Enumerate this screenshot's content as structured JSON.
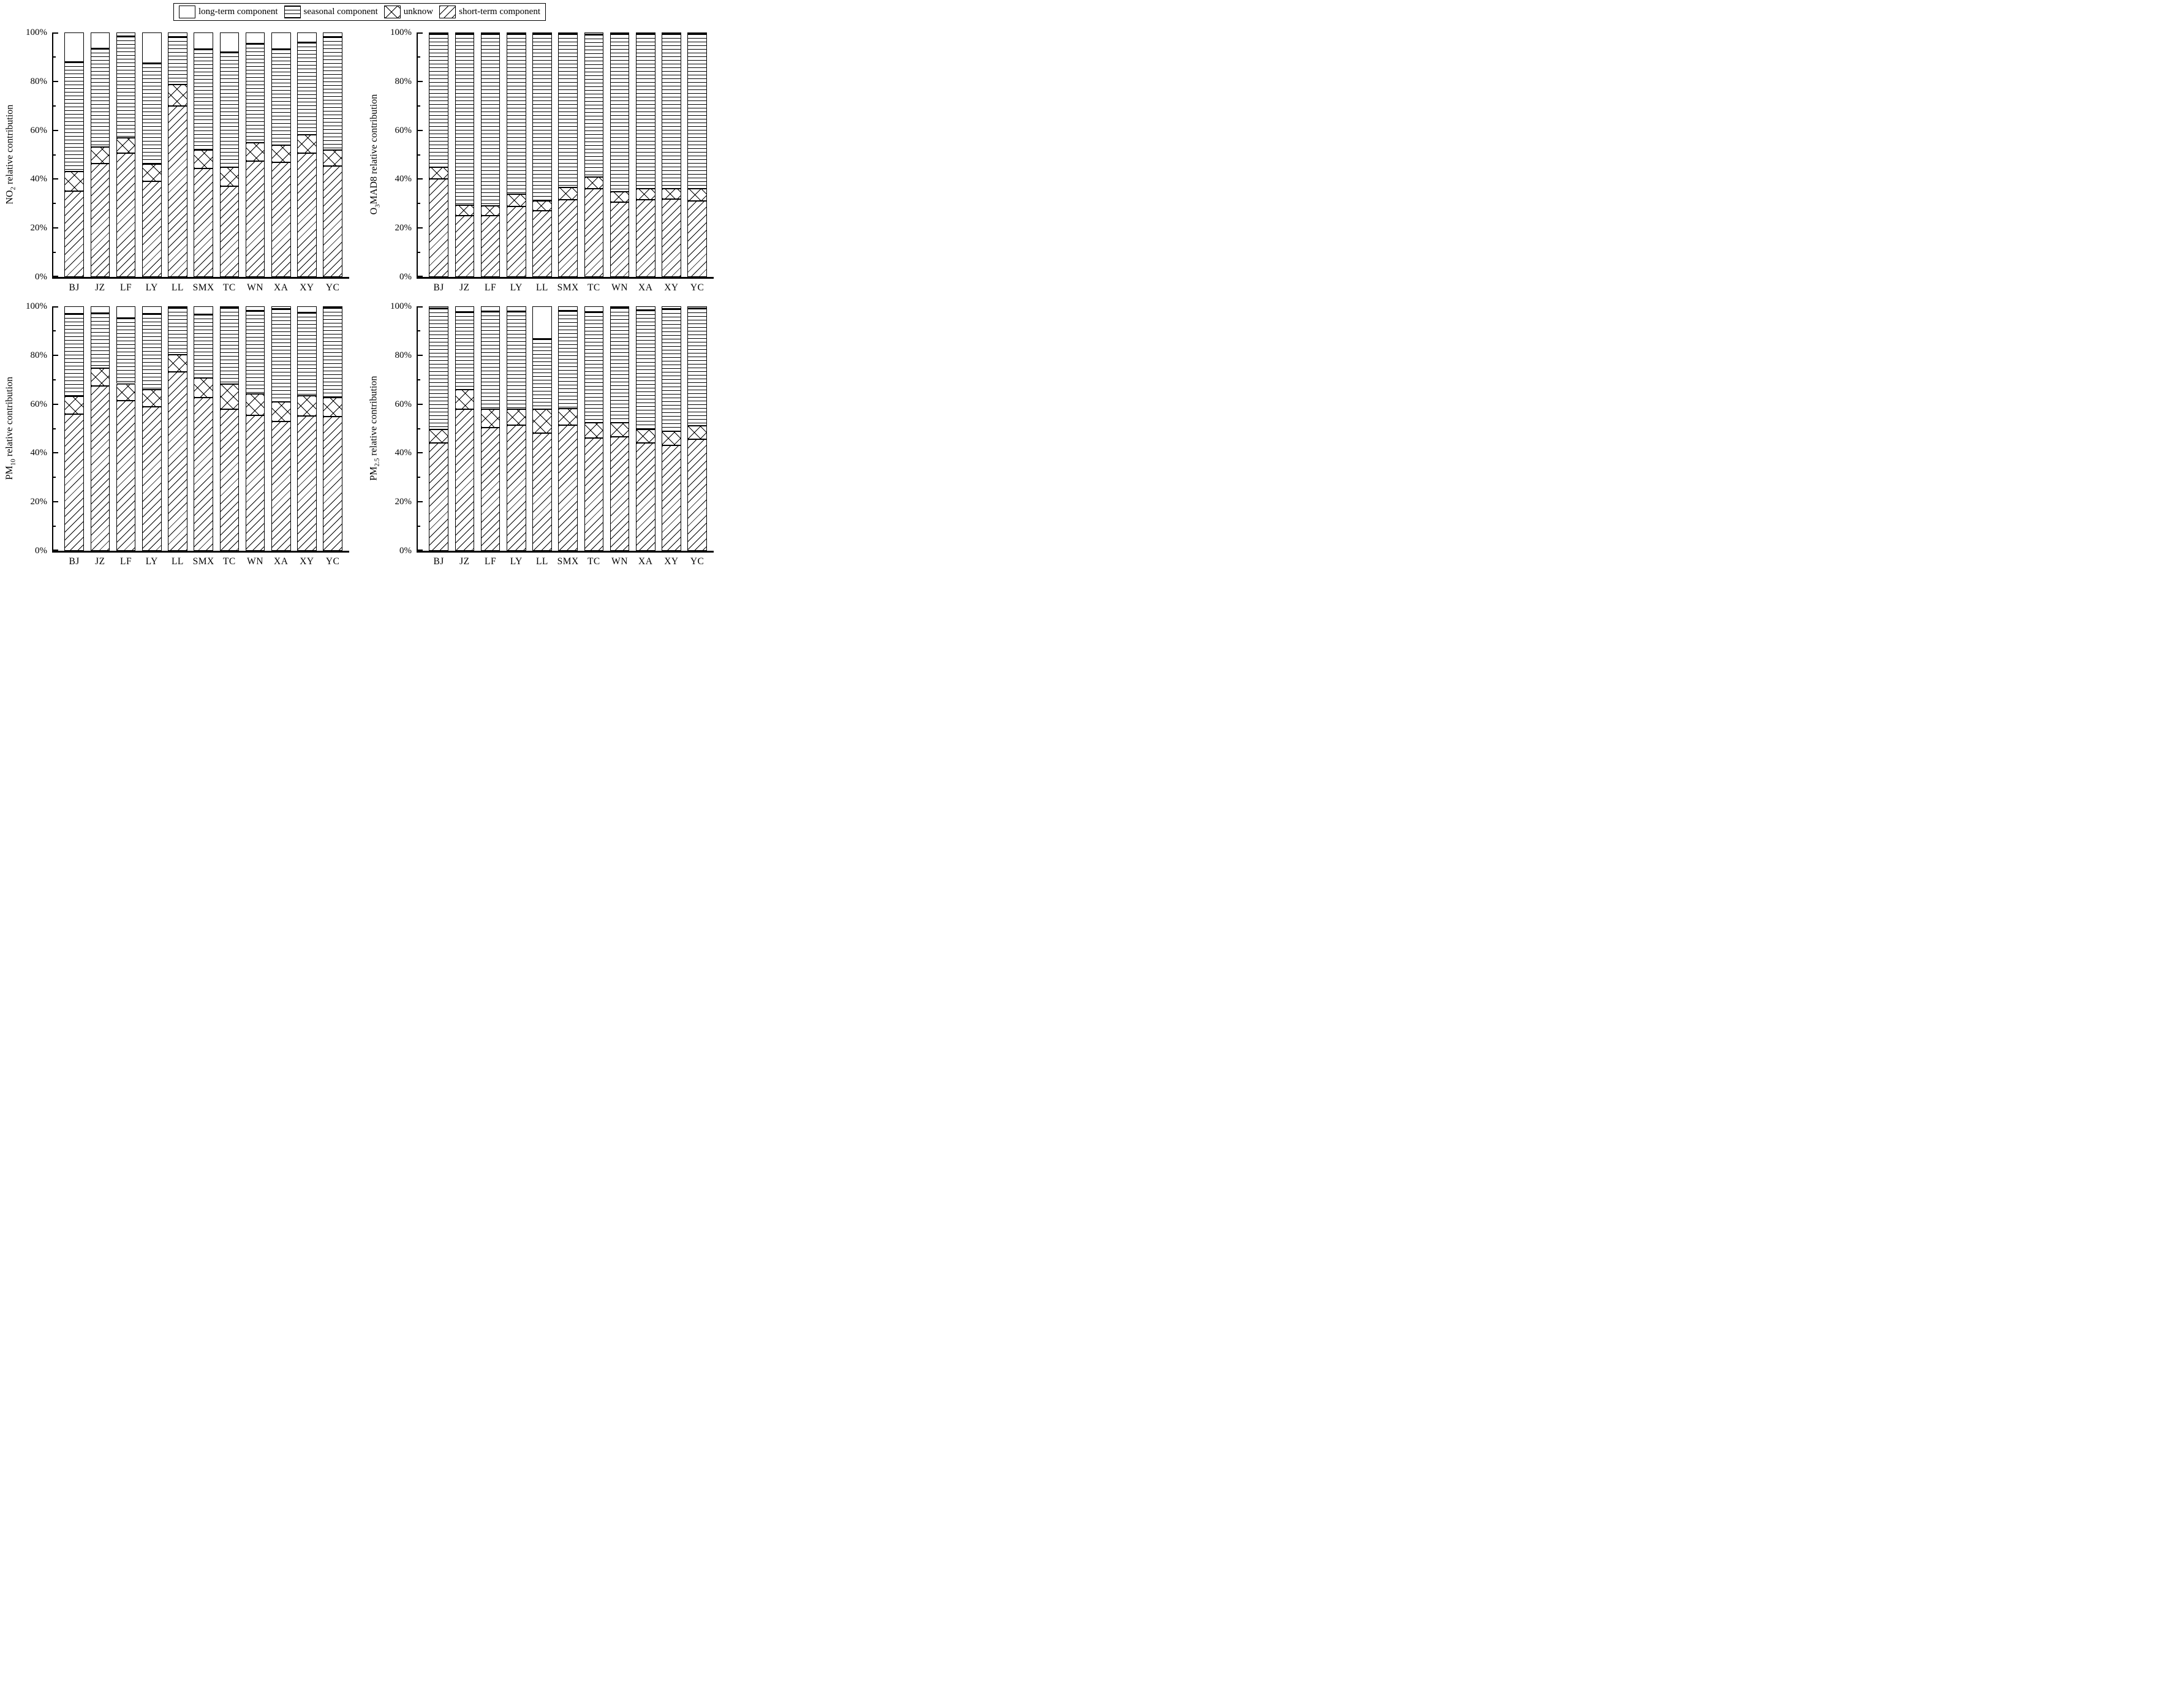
{
  "figure": {
    "background": "#ffffff",
    "foreground": "#000000",
    "legend": {
      "position": "top-center",
      "items": [
        {
          "label": "long-term component",
          "pattern": "none"
        },
        {
          "label": "seasonal component",
          "pattern": "horizontal-lines"
        },
        {
          "label": "unknow",
          "pattern": "crosshatch"
        },
        {
          "label": "short-term component",
          "pattern": "diagonal-lines"
        }
      ]
    }
  },
  "chart_data": [
    {
      "type": "bar",
      "stacked": true,
      "orientation": "vertical",
      "ylabel_pre": "NO",
      "ylabel_sub": "2",
      "ylabel_post": " relative contribution",
      "categories": [
        "BJ",
        "JZ",
        "LF",
        "LY",
        "LL",
        "SMX",
        "TC",
        "WN",
        "XA",
        "XY",
        "YC"
      ],
      "yticks": [
        "0%",
        "20%",
        "40%",
        "60%",
        "80%",
        "100%"
      ],
      "ylim": [
        0,
        100
      ],
      "grid": false,
      "series": [
        {
          "name": "short-term component",
          "pattern": "diagonal-lines",
          "values": [
            35.0,
            46.3,
            50.7,
            39.2,
            70.0,
            44.4,
            37.2,
            47.4,
            46.9,
            50.7,
            45.3
          ]
        },
        {
          "name": "unknow",
          "pattern": "crosshatch",
          "values": [
            8.0,
            6.9,
            6.1,
            7.0,
            8.7,
            7.5,
            7.6,
            7.4,
            7.0,
            7.4,
            6.6
          ]
        },
        {
          "name": "seasonal component",
          "pattern": "horizontal-lines",
          "values": [
            45.0,
            40.2,
            41.7,
            41.3,
            19.6,
            41.3,
            47.1,
            40.6,
            39.3,
            37.9,
            46.3
          ]
        },
        {
          "name": "long-term component",
          "pattern": "none",
          "values": [
            12.0,
            6.6,
            1.5,
            12.5,
            1.7,
            6.8,
            8.1,
            4.6,
            6.8,
            4.0,
            1.8
          ]
        }
      ]
    },
    {
      "type": "bar",
      "stacked": true,
      "orientation": "vertical",
      "ylabel_pre": "O",
      "ylabel_sub": "3",
      "ylabel_post": "MAD8 relative contribution",
      "categories": [
        "BJ",
        "JZ",
        "LF",
        "LY",
        "LL",
        "SMX",
        "TC",
        "WN",
        "XA",
        "XY",
        "YC"
      ],
      "yticks": [
        "0%",
        "20%",
        "40%",
        "60%",
        "80%",
        "100%"
      ],
      "ylim": [
        0,
        100
      ],
      "grid": false,
      "series": [
        {
          "name": "short-term component",
          "pattern": "diagonal-lines",
          "values": [
            40.2,
            25.0,
            25.1,
            28.8,
            27.1,
            31.6,
            36.0,
            30.6,
            31.5,
            31.8,
            31.0
          ]
        },
        {
          "name": "unknow",
          "pattern": "crosshatch",
          "values": [
            4.7,
            4.3,
            4.1,
            5.1,
            4.0,
            4.9,
            4.9,
            4.2,
            4.7,
            4.4,
            5.0
          ]
        },
        {
          "name": "seasonal component",
          "pattern": "horizontal-lines",
          "values": [
            54.5,
            70.3,
            70.3,
            65.7,
            68.4,
            63.1,
            58.4,
            64.8,
            63.3,
            63.3,
            63.6
          ]
        },
        {
          "name": "long-term component",
          "pattern": "none",
          "values": [
            0.6,
            0.4,
            0.5,
            0.4,
            0.5,
            0.4,
            0.7,
            0.4,
            0.5,
            0.5,
            0.4
          ]
        }
      ]
    },
    {
      "type": "bar",
      "stacked": true,
      "orientation": "vertical",
      "ylabel_pre": "PM",
      "ylabel_sub": "10",
      "ylabel_post": " relative contribution",
      "categories": [
        "BJ",
        "JZ",
        "LF",
        "LY",
        "LL",
        "SMX",
        "TC",
        "WN",
        "XA",
        "XY",
        "YC"
      ],
      "yticks": [
        "0%",
        "20%",
        "40%",
        "60%",
        "80%",
        "100%"
      ],
      "ylim": [
        0,
        100
      ],
      "grid": false,
      "series": [
        {
          "name": "short-term component",
          "pattern": "diagonal-lines",
          "values": [
            55.8,
            67.5,
            61.5,
            58.9,
            73.3,
            62.7,
            57.9,
            55.4,
            53.0,
            55.2,
            54.9
          ]
        },
        {
          "name": "unknow",
          "pattern": "crosshatch",
          "values": [
            7.3,
            7.1,
            6.8,
            7.0,
            6.9,
            7.9,
            10.2,
            8.8,
            7.8,
            8.1,
            7.8
          ]
        },
        {
          "name": "seasonal component",
          "pattern": "horizontal-lines",
          "values": [
            33.9,
            22.7,
            27.0,
            31.1,
            19.3,
            26.2,
            31.3,
            34.0,
            38.1,
            34.3,
            36.7
          ]
        },
        {
          "name": "long-term component",
          "pattern": "none",
          "values": [
            3.0,
            2.7,
            4.7,
            3.0,
            0.5,
            3.2,
            0.6,
            1.8,
            1.1,
            2.4,
            0.6
          ]
        }
      ]
    },
    {
      "type": "bar",
      "stacked": true,
      "orientation": "vertical",
      "ylabel_pre": "PM",
      "ylabel_sub": "2.5",
      "ylabel_post": " relative contribution",
      "categories": [
        "BJ",
        "JZ",
        "LF",
        "LY",
        "LL",
        "SMX",
        "TC",
        "WN",
        "XA",
        "XY",
        "YC"
      ],
      "yticks": [
        "0%",
        "20%",
        "40%",
        "60%",
        "80%",
        "100%"
      ],
      "ylim": [
        0,
        100
      ],
      "grid": false,
      "series": [
        {
          "name": "short-term component",
          "pattern": "diagonal-lines",
          "values": [
            44.0,
            58.0,
            50.4,
            51.5,
            48.1,
            51.5,
            46.0,
            46.7,
            44.1,
            43.2,
            45.7
          ]
        },
        {
          "name": "unknow",
          "pattern": "crosshatch",
          "values": [
            5.7,
            8.0,
            7.5,
            6.4,
            9.8,
            6.7,
            6.5,
            5.6,
            5.6,
            5.6,
            5.5
          ]
        },
        {
          "name": "seasonal component",
          "pattern": "horizontal-lines",
          "values": [
            49.5,
            31.7,
            40.2,
            40.2,
            28.7,
            40.0,
            45.3,
            47.1,
            48.9,
            50.1,
            48.0
          ]
        },
        {
          "name": "long-term component",
          "pattern": "none",
          "values": [
            0.8,
            2.3,
            1.9,
            1.9,
            13.4,
            1.8,
            2.2,
            0.6,
            1.4,
            1.1,
            0.8
          ]
        }
      ]
    }
  ]
}
